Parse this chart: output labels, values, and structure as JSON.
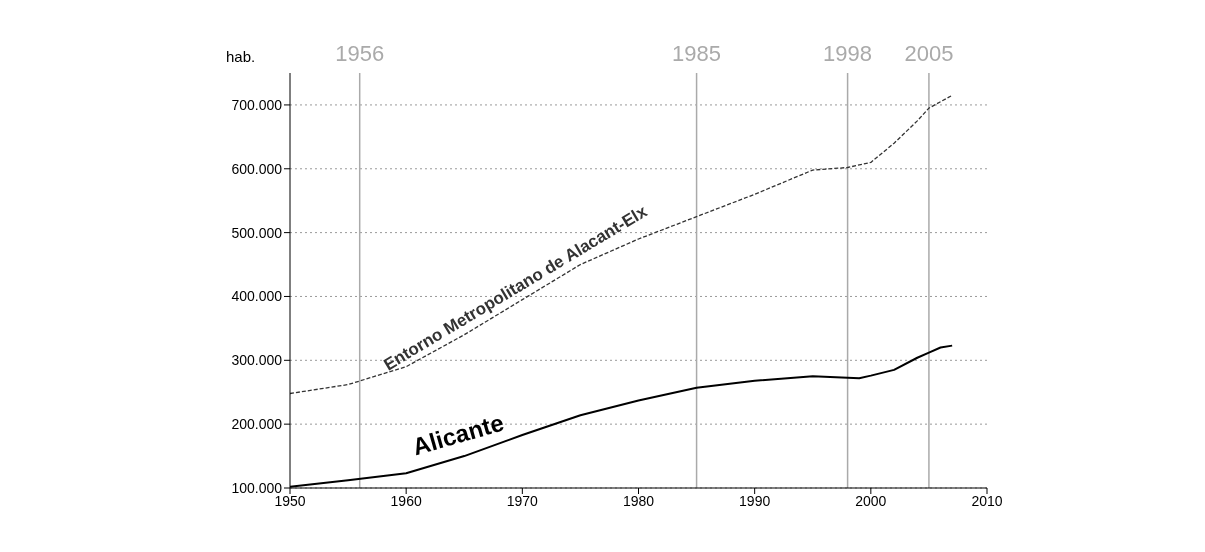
{
  "chart_data": {
    "type": "line",
    "ylabel": "hab.",
    "xlim": [
      1950,
      2010
    ],
    "xticks": [
      1950,
      1960,
      1970,
      1980,
      1990,
      2000,
      2010
    ],
    "ylim": [
      100000,
      750000
    ],
    "yticks": [
      {
        "value": 100000,
        "label": "100.000"
      },
      {
        "value": 200000,
        "label": "200.000"
      },
      {
        "value": 300000,
        "label": "300.000"
      },
      {
        "value": 400000,
        "label": "400.000"
      },
      {
        "value": 500000,
        "label": "500.000"
      },
      {
        "value": 600000,
        "label": "600.000"
      },
      {
        "value": 700000,
        "label": "700.000"
      }
    ],
    "grid": "y",
    "marker": "none",
    "ref_lines": [
      {
        "axis": "x",
        "value": 1956,
        "label": "1956",
        "color": "#aaaaaa"
      },
      {
        "axis": "x",
        "value": 1985,
        "label": "1985",
        "color": "#aaaaaa"
      },
      {
        "axis": "x",
        "value": 1998,
        "label": "1998",
        "color": "#aaaaaa"
      },
      {
        "axis": "x",
        "value": 2005,
        "label": "2005",
        "color": "#aaaaaa"
      }
    ],
    "series": [
      {
        "name": "Entorno Metropolitano de Alacant-Elx",
        "color": "#333333",
        "line_style": "dashed",
        "x": [
          1950,
          1955,
          1960,
          1965,
          1970,
          1975,
          1980,
          1985,
          1990,
          1995,
          1998,
          2000,
          2002,
          2004,
          2005,
          2007
        ],
        "values": [
          248000,
          262000,
          290000,
          340000,
          395000,
          450000,
          490000,
          525000,
          560000,
          598000,
          602000,
          610000,
          640000,
          675000,
          695000,
          715000
        ]
      },
      {
        "name": "Alicante",
        "color": "#000000",
        "line_style": "solid",
        "x": [
          1950,
          1955,
          1960,
          1965,
          1970,
          1975,
          1980,
          1985,
          1990,
          1995,
          1999,
          2000,
          2002,
          2004,
          2005,
          2006,
          2007
        ],
        "values": [
          102000,
          112000,
          123000,
          150000,
          183000,
          214000,
          237000,
          257000,
          268000,
          275000,
          272000,
          276000,
          285000,
          304000,
          312000,
          320000,
          323000
        ]
      }
    ]
  }
}
